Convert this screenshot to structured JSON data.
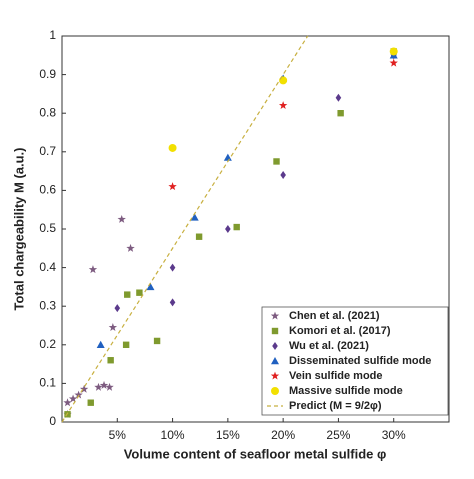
{
  "chart_data": {
    "type": "scatter",
    "x_label": "Volume content of seafloor metal sulfide φ",
    "y_label": "Total chargeability M (a.u.)",
    "xlim": [
      0,
      35
    ],
    "ylim": [
      0,
      1
    ],
    "xticks": [
      {
        "value": 5,
        "label": "5%"
      },
      {
        "value": 10,
        "label": "10%"
      },
      {
        "value": 15,
        "label": "15%"
      },
      {
        "value": 20,
        "label": "20%"
      },
      {
        "value": 25,
        "label": "25%"
      },
      {
        "value": 30,
        "label": "30%"
      }
    ],
    "yticks": [
      0,
      0.1,
      0.2,
      0.3,
      0.4,
      0.5,
      0.6,
      0.7,
      0.8,
      0.9,
      1
    ],
    "legend": "lower right",
    "series": [
      {
        "name": "Chen et al. (2021)",
        "color": "#7d5b80",
        "marker": "star",
        "x": [
          0.5,
          0.5,
          1,
          1.5,
          2,
          2.8,
          3.3,
          3.8,
          4.3,
          4.6,
          5.4,
          6.2
        ],
        "values": [
          0.02,
          0.05,
          0.06,
          0.07,
          0.085,
          0.395,
          0.09,
          0.095,
          0.09,
          0.245,
          0.525,
          0.45
        ]
      },
      {
        "name": "Komori et al. (2017)",
        "color": "#7f9a2e",
        "marker": "square",
        "x": [
          0.5,
          2.6,
          4.4,
          5.8,
          5.9,
          7,
          8.6,
          12.4,
          15.8,
          19.4,
          25.2,
          30
        ],
        "values": [
          0.02,
          0.05,
          0.16,
          0.2,
          0.33,
          0.335,
          0.21,
          0.48,
          0.505,
          0.675,
          0.8,
          0.96
        ]
      },
      {
        "name": "Wu et al. (2021)",
        "color": "#5b3a8c",
        "marker": "diamond",
        "x": [
          5,
          10,
          10,
          15,
          20,
          25,
          30
        ],
        "values": [
          0.295,
          0.4,
          0.31,
          0.5,
          0.64,
          0.84,
          0.95
        ]
      },
      {
        "name": "Disseminated sulfide mode",
        "color": "#2060c0",
        "marker": "triangle",
        "x": [
          3.5,
          8,
          12,
          15,
          20,
          30
        ],
        "values": [
          0.2,
          0.35,
          0.53,
          0.685,
          0.89,
          0.95
        ]
      },
      {
        "name": "Vein sulfide mode",
        "color": "#e02020",
        "marker": "star",
        "x": [
          10,
          20,
          30
        ],
        "values": [
          0.61,
          0.82,
          0.93
        ]
      },
      {
        "name": "Massive sulfide mode",
        "color": "#f2e000",
        "marker": "circle",
        "x": [
          10,
          20,
          30
        ],
        "values": [
          0.71,
          0.885,
          0.96
        ]
      },
      {
        "name": "Predict (M = 9/2φ)",
        "color": "#c8b040",
        "marker": "dashed-line",
        "x": [
          0,
          22.22
        ],
        "values": [
          0,
          1
        ]
      }
    ]
  }
}
